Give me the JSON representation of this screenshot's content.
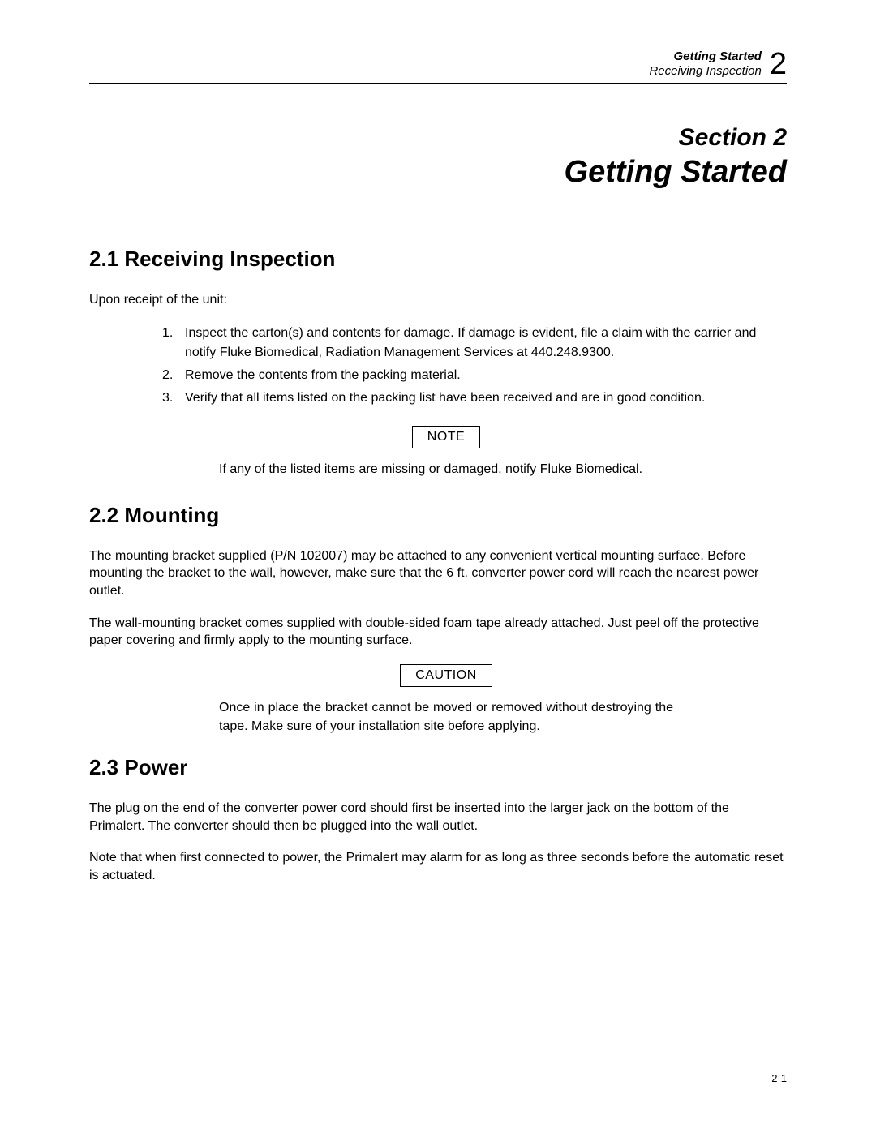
{
  "header": {
    "line1": "Getting Started",
    "line2": "Receiving Inspection",
    "chapter_num": "2"
  },
  "title_block": {
    "section_label": "Section 2",
    "section_title": "Getting Started"
  },
  "s21": {
    "heading": "2.1 Receiving Inspection",
    "intro": "Upon receipt of the unit:",
    "items": [
      "Inspect the carton(s) and contents for damage. If damage is evident, file a claim with the carrier and notify Fluke Biomedical, Radiation Management Services at 440.248.9300.",
      "Remove the contents from the packing material.",
      "Verify that all items listed on the packing list have been received and are in good condition."
    ],
    "note_label": "NOTE",
    "note_body": "If any of the listed items are missing or damaged, notify Fluke Biomedical."
  },
  "s22": {
    "heading": "2.2 Mounting",
    "p1": "The mounting bracket supplied (P/N 102007) may be attached to any convenient vertical mounting surface. Before mounting the bracket to the wall, however, make sure that the 6 ft. converter power cord will reach the nearest power outlet.",
    "p2": "The wall-mounting bracket comes supplied with double-sided foam tape already attached. Just peel off the protective paper covering and firmly apply to the mounting surface.",
    "caution_label": "CAUTION",
    "caution_body": "Once in place the bracket cannot be moved or removed without destroying the tape. Make sure of your installation site before applying."
  },
  "s23": {
    "heading": "2.3 Power",
    "p1": "The plug on the end of the converter power cord should first be inserted into the larger jack on the bottom of the Primalert. The converter should then be plugged into the wall outlet.",
    "p2": "Note that when first connected to power, the Primalert may alarm for as long as three seconds before the automatic reset is actuated."
  },
  "page_number": "2-1",
  "colors": {
    "text": "#000000",
    "background": "#ffffff",
    "rule": "#000000"
  },
  "typography": {
    "body_font": "Arial",
    "body_size_pt": 12,
    "heading_size_pt": 20,
    "title_size_pt": 28
  }
}
